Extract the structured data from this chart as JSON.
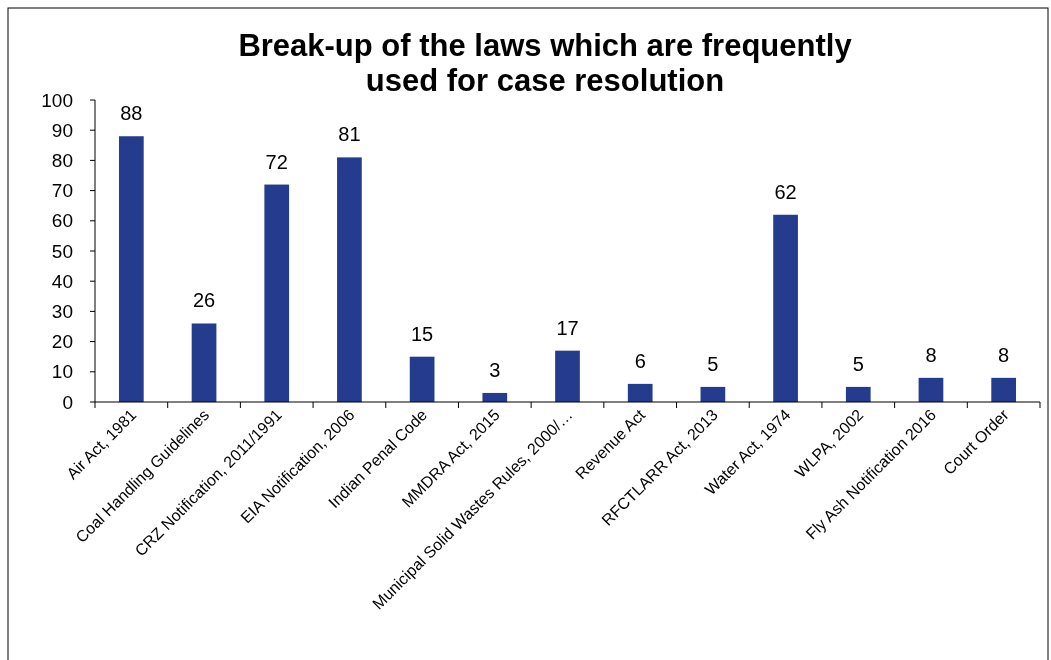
{
  "chart_data": {
    "type": "bar",
    "title": "Break-up of the laws which are frequently used for case resolution",
    "categories": [
      "Air Act, 1981",
      "Coal Handling Guidelines",
      "CRZ Notification, 2011/1991",
      "EIA Notification, 2006",
      "Indian Penal Code",
      "MMDRA Act, 2015",
      "Municipal Solid Wastes Rules, 2000/…",
      "Revenue Act",
      "RFCTLARR Act, 2013",
      "Water Act, 1974",
      "WLPA, 2002",
      "Fly Ash Notification 2016",
      "Court Order"
    ],
    "values": [
      88,
      26,
      72,
      81,
      15,
      3,
      17,
      6,
      5,
      62,
      5,
      8,
      8
    ],
    "color": "#253c8e",
    "ylim": [
      0,
      100
    ],
    "yticks": [
      0,
      10,
      20,
      30,
      40,
      50,
      60,
      70,
      80,
      90,
      100
    ],
    "grid": false,
    "data_labels": true
  }
}
